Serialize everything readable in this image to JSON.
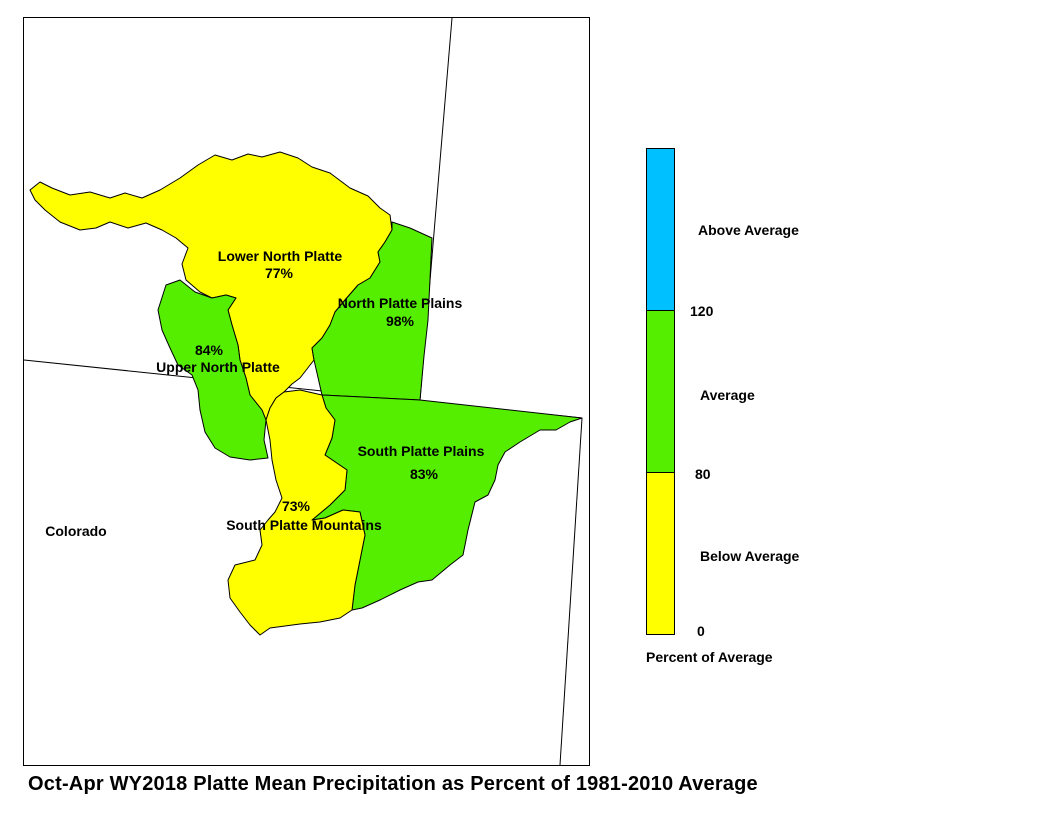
{
  "title": "Oct-Apr WY2018 Platte Mean Precipitation as Percent of 1981-2010 Average",
  "state_label": "Colorado",
  "colors": {
    "above": "#00c0ff",
    "average": "#55ee00",
    "below": "#ffff00",
    "outline": "#000000"
  },
  "basins": [
    {
      "name": "Lower North Platte",
      "percent": "77%",
      "category": "below"
    },
    {
      "name": "North Platte Plains",
      "percent": "98%",
      "category": "average"
    },
    {
      "name": "Upper North Platte",
      "percent": "84%",
      "category": "average"
    },
    {
      "name": "South Platte Plains",
      "percent": "83%",
      "category": "average"
    },
    {
      "name": "South Platte Mountains",
      "percent": "73%",
      "category": "below"
    }
  ],
  "legend": {
    "title": "Percent of Average",
    "classes": [
      {
        "label": "Above Average",
        "color": "#00c0ff"
      },
      {
        "label": "Average",
        "color": "#55ee00"
      },
      {
        "label": "Below Average",
        "color": "#ffff00"
      }
    ],
    "breaks": [
      "120",
      "80",
      "0"
    ]
  }
}
